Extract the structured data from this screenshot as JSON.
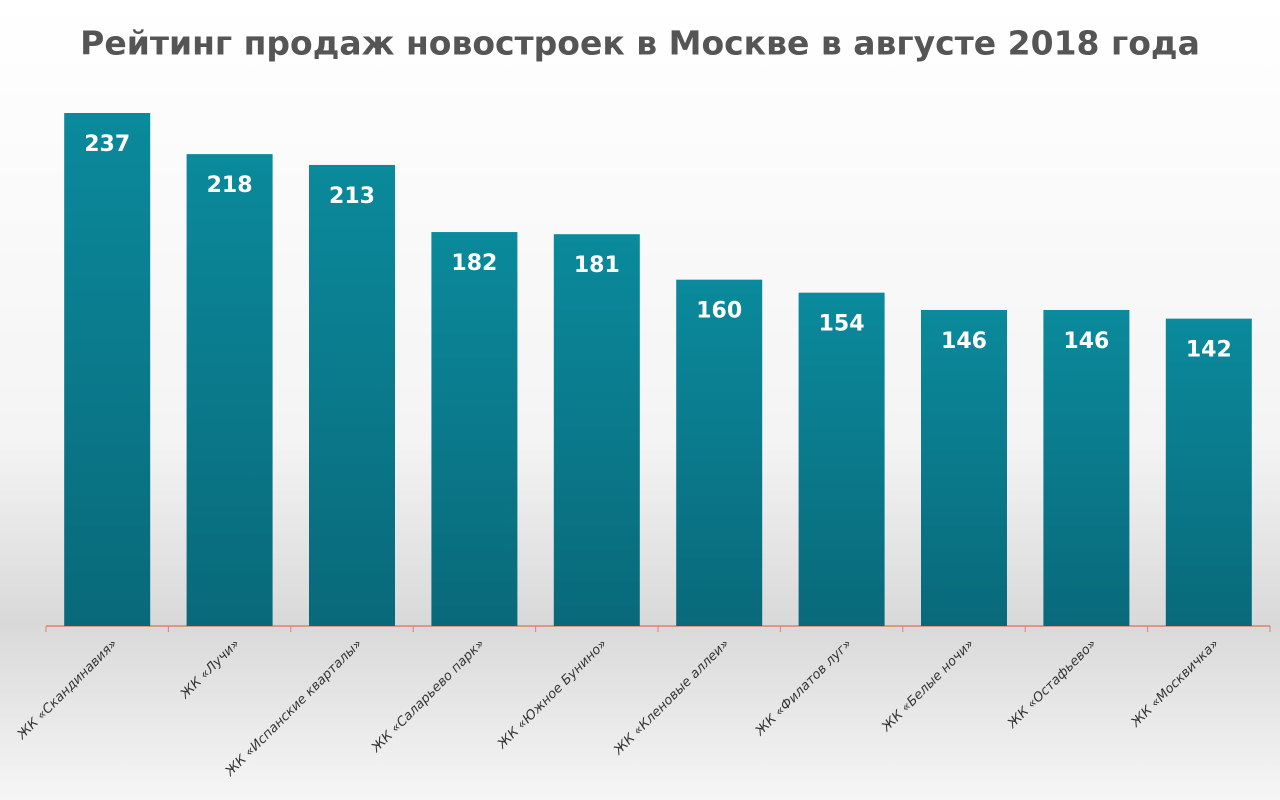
{
  "chart_data": {
    "type": "bar",
    "title": "Рейтинг продаж новостроек в Москве в августе 2018 года",
    "categories": [
      "ЖК «Скандинавия»",
      "ЖК «Лучи»",
      "ЖК «Испанские кварталы»",
      "ЖК «Саларьево парк»",
      "ЖК «Южное Бунино»",
      "ЖК «Кленовые аллеи»",
      "ЖК «Филатов луг»",
      "ЖК «Белые ночи»",
      "ЖК «Остафьево»",
      "ЖК «Москвичка»"
    ],
    "values": [
      237,
      218,
      213,
      182,
      181,
      160,
      154,
      146,
      146,
      142
    ],
    "color": "#0a8597",
    "ylim": [
      0,
      237
    ]
  }
}
